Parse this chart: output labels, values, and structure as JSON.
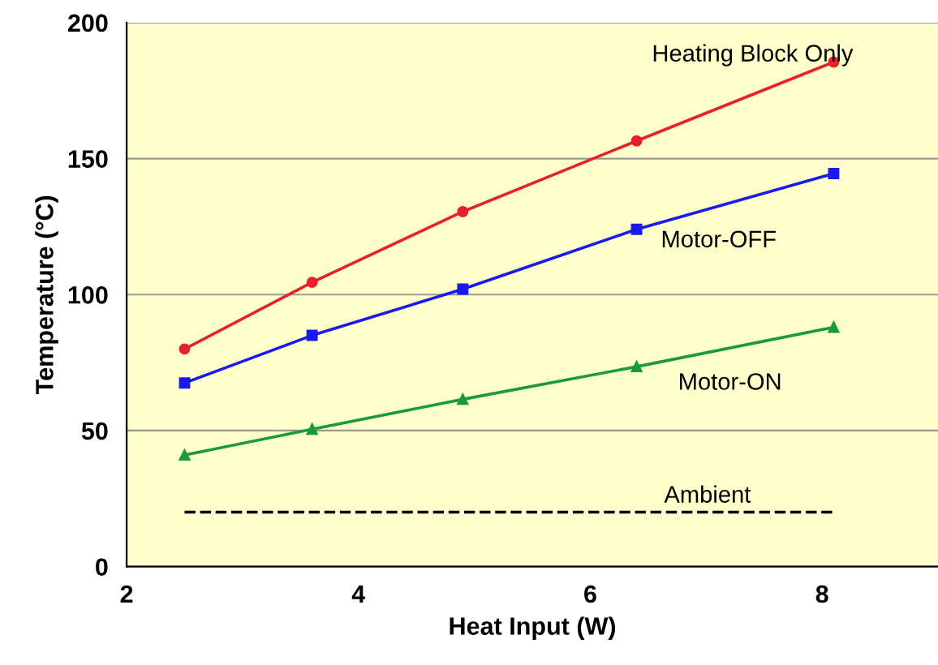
{
  "chart_data": {
    "type": "line",
    "xlabel": "Heat Input (W)",
    "ylabel": "Temperature (°C)",
    "xlim": [
      2,
      9
    ],
    "xticks": [
      2,
      4,
      6,
      8
    ],
    "ylim": [
      0,
      200
    ],
    "yticks": [
      0,
      50,
      100,
      150,
      200
    ],
    "grid": "y",
    "legend": false,
    "series": [
      {
        "name": "Heating Block Only",
        "x": [
          2.5,
          3.6,
          4.9,
          6.4,
          8.1
        ],
        "values": [
          80,
          104.5,
          130.5,
          156.5,
          185.5
        ],
        "color": "#e8202a",
        "marker": "circle",
        "line_style": "solid"
      },
      {
        "name": "Motor-OFF",
        "x": [
          2.5,
          3.6,
          4.9,
          6.4,
          8.1
        ],
        "values": [
          67.5,
          85,
          102,
          124,
          144.5
        ],
        "color": "#1a1aee",
        "marker": "square",
        "line_style": "solid"
      },
      {
        "name": "Motor-ON",
        "x": [
          2.5,
          3.6,
          4.9,
          6.4,
          8.1
        ],
        "values": [
          41,
          50.5,
          61.5,
          73.5,
          88
        ],
        "color": "#1a9a3a",
        "marker": "triangle",
        "line_style": "solid"
      },
      {
        "name": "Ambient",
        "x": [
          2.5,
          8.1
        ],
        "values": [
          20,
          20
        ],
        "color": "#000000",
        "marker": "none",
        "line_style": "dashed"
      }
    ]
  }
}
